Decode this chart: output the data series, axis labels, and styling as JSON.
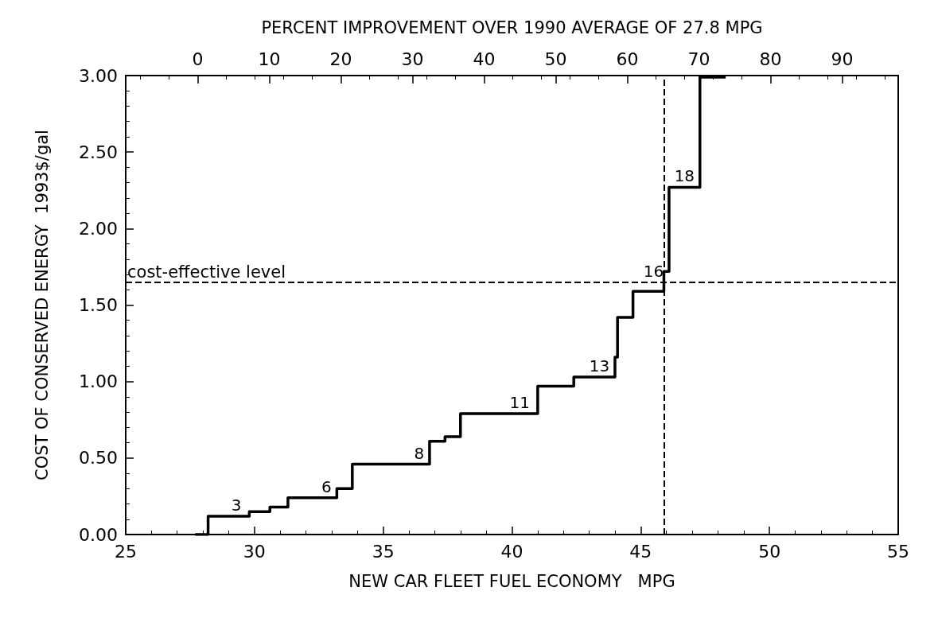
{
  "chart_data": {
    "type": "step",
    "xlabel": "NEW CAR FLEET FUEL ECONOMY   MPG",
    "ylabel": "COST OF CONSERVED ENERGY  1993$/gal",
    "x2label": "PERCENT IMPROVEMENT OVER 1990 AVERAGE OF 27.8 MPG",
    "x": [
      27.7,
      28.2,
      29.8,
      30.6,
      31.3,
      33.2,
      33.8,
      36.8,
      37.4,
      38.0,
      41.0,
      42.4,
      44.0,
      44.1,
      44.7,
      45.9,
      46.1,
      47.3,
      48.3
    ],
    "series": [
      {
        "color": "#000000",
        "values": [
          0,
          0.12,
          0.15,
          0.18,
          0.24,
          0.3,
          0.46,
          0.61,
          0.64,
          0.79,
          0.97,
          1.03,
          1.16,
          1.42,
          1.59,
          1.72,
          2.27,
          2.99,
          2.99
        ]
      }
    ],
    "xlim": [
      25,
      55
    ],
    "xticks": [
      25,
      30,
      35,
      40,
      45,
      50,
      55
    ],
    "x2lim": [
      -10.07,
      97.84
    ],
    "x2ticks": [
      0,
      10,
      20,
      30,
      40,
      50,
      60,
      70,
      80,
      90
    ],
    "ylim": [
      0,
      3
    ],
    "yticks": [
      {
        "value": 0,
        "label": "0.00"
      },
      {
        "value": 0.5,
        "label": "0.50"
      },
      {
        "value": 1,
        "label": "1.00"
      },
      {
        "value": 1.5,
        "label": "1.50"
      },
      {
        "value": 2,
        "label": "2.00"
      },
      {
        "value": 2.5,
        "label": "2.50"
      },
      {
        "value": 3,
        "label": "3.00"
      }
    ],
    "ref_lines": [
      {
        "axis": "y",
        "value": 1.65,
        "label": "cost-effective level",
        "line_style": "dashed",
        "color": "#000000"
      },
      {
        "axis": "x",
        "value": 45.9,
        "label": null,
        "line_style": "dashed",
        "color": "#000000"
      }
    ],
    "annotations": [
      {
        "text": "3",
        "x": 29.3,
        "y": 0.12
      },
      {
        "text": "6",
        "x": 32.8,
        "y": 0.24
      },
      {
        "text": "8",
        "x": 36.4,
        "y": 0.46
      },
      {
        "text": "11",
        "x": 40.3,
        "y": 0.79
      },
      {
        "text": "13",
        "x": 43.4,
        "y": 1.03
      },
      {
        "text": "16",
        "x": 45.5,
        "y": 1.65
      },
      {
        "text": "18",
        "x": 46.7,
        "y": 2.27
      }
    ],
    "grid": false,
    "marker": "none",
    "line_style": "solid"
  }
}
